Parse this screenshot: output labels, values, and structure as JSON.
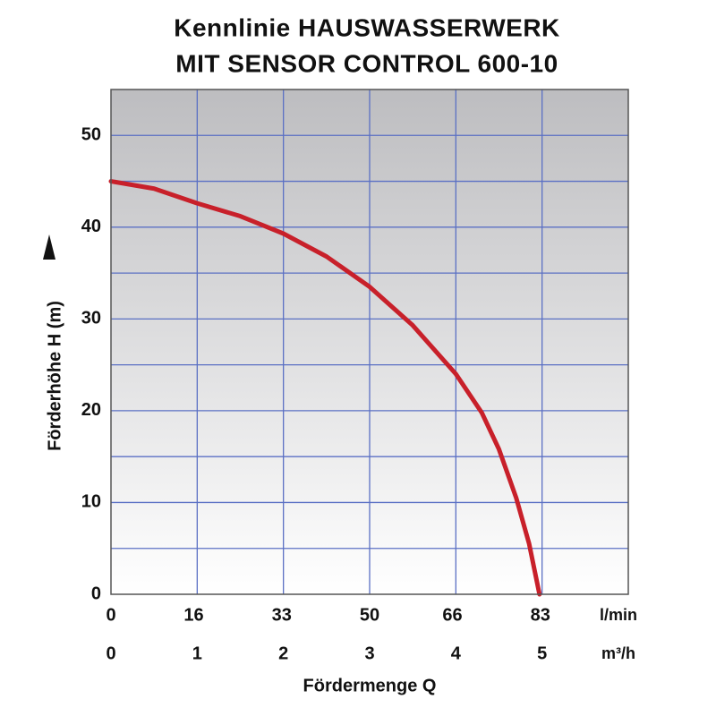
{
  "chart_data": {
    "type": "line",
    "title": [
      "Kennlinie HAUSWASSERWERK",
      "MIT SENSOR CONTROL 600-10"
    ],
    "x_label": "Fördermenge Q",
    "y_label": "Förderhöhe H (m)",
    "x_unit": "m³/h",
    "x2_unit": "l/min",
    "xlim": [
      0,
      6
    ],
    "xticks": [
      0,
      1,
      2,
      3,
      4,
      5
    ],
    "x2lim": [
      0,
      100
    ],
    "x2ticks": [
      0,
      16,
      33,
      50,
      66,
      83
    ],
    "ylim": [
      0,
      55
    ],
    "yticks": [
      0,
      10,
      20,
      30,
      40,
      50
    ],
    "x_grid": [
      1,
      2,
      3,
      4,
      5
    ],
    "y_grid": [
      5,
      10,
      15,
      20,
      25,
      30,
      35,
      40,
      45,
      50
    ],
    "grid": true,
    "grid_color": "#5b70c4",
    "series": [
      {
        "color": "#c8202a",
        "x": [
          0,
          0.5,
          1,
          1.5,
          2,
          2.5,
          3,
          3.5,
          4,
          4.3,
          4.5,
          4.7,
          4.85,
          4.97
        ],
        "values": [
          45,
          44.2,
          42.6,
          41.2,
          39.3,
          36.8,
          33.5,
          29.3,
          24,
          19.8,
          15.8,
          10.5,
          5.5,
          0
        ]
      }
    ]
  }
}
